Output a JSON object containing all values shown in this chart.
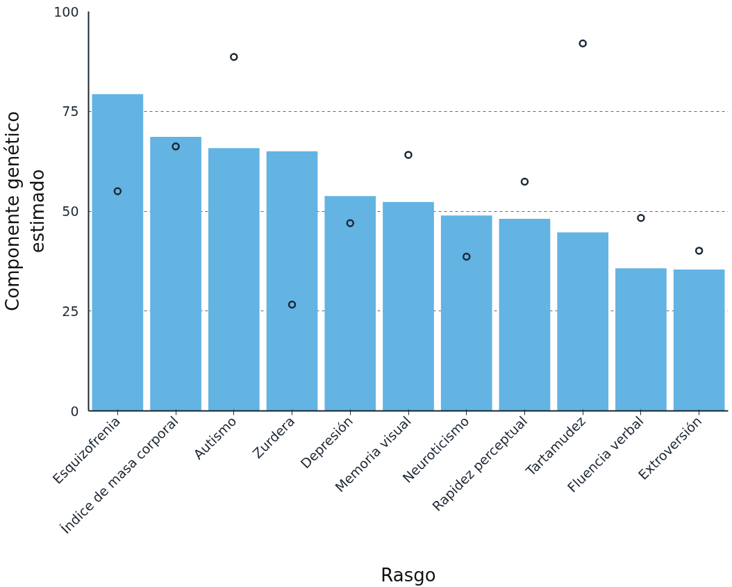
{
  "chart_data": {
    "type": "bar",
    "xlabel": "Rasgo",
    "ylabel": "Componente genético estimado",
    "categories": [
      "Esquizofrenia",
      "Índice de masa corporal",
      "Autismo",
      "Zurdera",
      "Depresión",
      "Memoria visual",
      "Neuroticismo",
      "Rapidez perceptual",
      "Tartamudez",
      "Fluencia verbal",
      "Extroversión"
    ],
    "series": [
      {
        "color": "#63b3e3",
        "values": [
          79.3,
          68.6,
          65.8,
          65.0,
          53.8,
          52.3,
          48.9,
          48.1,
          44.7,
          35.7,
          35.4
        ]
      },
      {
        "type": "scatter",
        "color": "#1c2733",
        "x": [
          "Esquizofrenia",
          "Índice de masa corporal",
          "Autismo",
          "Zurdera",
          "Depresión",
          "Memoria visual",
          "Neuroticismo",
          "Rapidez perceptual",
          "Tartamudez",
          "Fluencia verbal",
          "Extroversión"
        ],
        "values": [
          55.0,
          66.2,
          88.6,
          26.6,
          47.0,
          64.1,
          38.6,
          57.4,
          92.0,
          48.3,
          40.1
        ]
      }
    ],
    "ylim": [
      0,
      100
    ],
    "yticks": [
      0,
      25,
      50,
      75,
      100
    ],
    "grid": "y",
    "marker": "circle"
  }
}
